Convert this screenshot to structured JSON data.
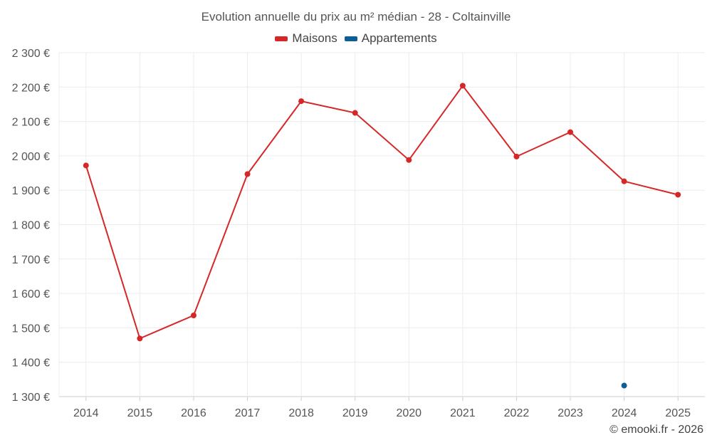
{
  "chart_data": {
    "type": "line",
    "title": "Evolution annuelle du prix au m² médian - 28 - Coltainville",
    "xlabel": "",
    "ylabel": "",
    "x": [
      "2014",
      "2015",
      "2016",
      "2017",
      "2018",
      "2019",
      "2020",
      "2021",
      "2022",
      "2023",
      "2024",
      "2025"
    ],
    "y_ticks": [
      "1 300 €",
      "1 400 €",
      "1 500 €",
      "1 600 €",
      "1 700 €",
      "1 800 €",
      "1 900 €",
      "2 000 €",
      "2 100 €",
      "2 200 €",
      "2 300 €"
    ],
    "ylim": [
      1300,
      2300
    ],
    "grid": true,
    "legend_position": "top-center",
    "series": [
      {
        "name": "Maisons",
        "color": "#d62728",
        "values": [
          1972,
          1469,
          1536,
          1947,
          2159,
          2125,
          1988,
          2204,
          1998,
          2069,
          1926,
          1887
        ]
      },
      {
        "name": "Appartements",
        "color": "#0a5f96",
        "values": [
          null,
          null,
          null,
          null,
          null,
          null,
          null,
          null,
          null,
          null,
          1332,
          null
        ]
      }
    ]
  },
  "footer": "© emooki.fr - 2026"
}
